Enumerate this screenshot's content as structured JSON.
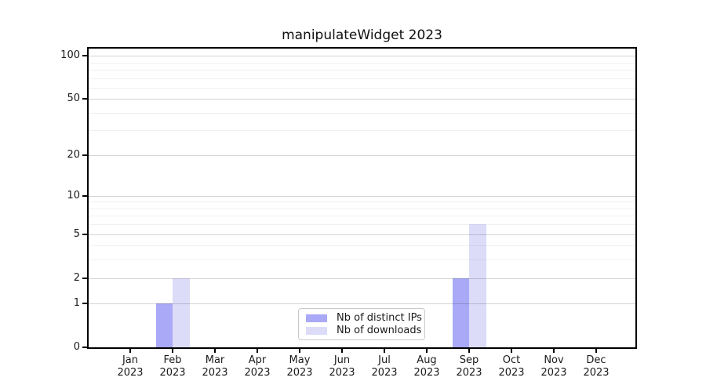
{
  "chart_data": {
    "type": "bar",
    "title": "manipulateWidget 2023",
    "categories": [
      "Jan",
      "Feb",
      "Mar",
      "Apr",
      "May",
      "Jun",
      "Jul",
      "Aug",
      "Sep",
      "Oct",
      "Nov",
      "Dec"
    ],
    "x_tick_year": "2023",
    "series": [
      {
        "name": "Nb of distinct IPs",
        "color": "#a9a9f7",
        "values": [
          0,
          1,
          0,
          0,
          0,
          0,
          0,
          0,
          2,
          0,
          0,
          0
        ]
      },
      {
        "name": "Nb of downloads",
        "color": "#dcdcf9",
        "values": [
          0,
          2,
          0,
          0,
          0,
          0,
          0,
          0,
          6,
          0,
          0,
          0
        ]
      }
    ],
    "y_axis": {
      "scale": "log1p",
      "ticks": [
        0,
        1,
        2,
        5,
        10,
        20,
        50,
        100
      ],
      "minor_ticks": [
        3,
        4,
        6,
        7,
        8,
        9,
        30,
        40,
        60,
        70,
        80,
        90
      ],
      "max": 112
    },
    "legend_position": "bottom-center",
    "grid": "horizontal",
    "colors": {
      "grid_major": "#d4d4d4",
      "grid_minor": "#efefef",
      "axis": "#000000",
      "text": "#1a1a1a"
    }
  }
}
